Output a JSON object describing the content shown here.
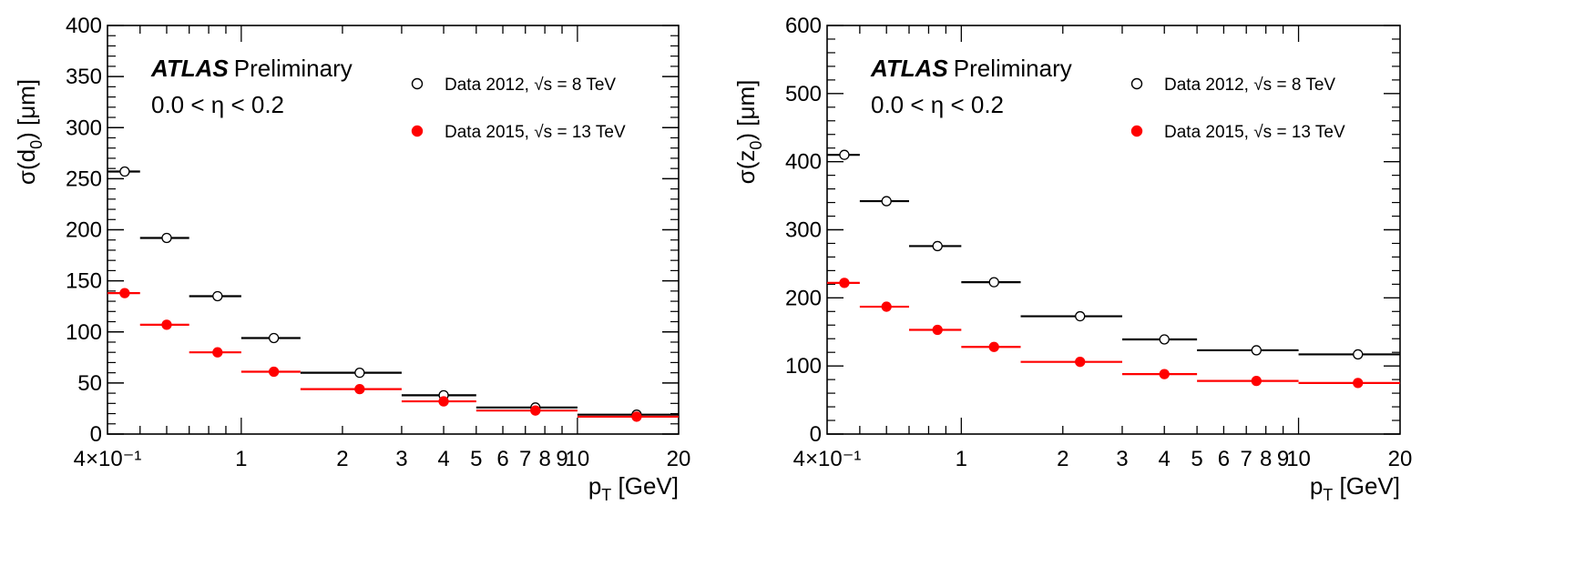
{
  "chart_data": [
    {
      "type": "scatter",
      "xscale": "log",
      "xlim": [
        0.4,
        20
      ],
      "ylim": [
        0,
        400
      ],
      "yticks": [
        0,
        50,
        100,
        150,
        200,
        250,
        300,
        350,
        400
      ],
      "xtick_labels": [
        {
          "x": 0.4,
          "label": "4×10⁻¹"
        },
        {
          "x": 1,
          "label": "1"
        },
        {
          "x": 2,
          "label": "2"
        },
        {
          "x": 3,
          "label": "3"
        },
        {
          "x": 4,
          "label": "4"
        },
        {
          "x": 5,
          "label": "5"
        },
        {
          "x": 6,
          "label": "6"
        },
        {
          "x": 7,
          "label": "7"
        },
        {
          "x": 8,
          "label": "8"
        },
        {
          "x": 9,
          "label": "9"
        },
        {
          "x": 10,
          "label": "10"
        },
        {
          "x": 20,
          "label": "20"
        }
      ],
      "xlabel": "p_T [GeV]",
      "ylabel": "σ(d_0) [μm]",
      "ylabel_main": "σ(d",
      "ylabel_sub": "0",
      "ylabel_tail": ") [μm]",
      "atlas_label": "ATLAS",
      "atlas_sub": "Preliminary",
      "region_label": "0.0 < η < 0.2",
      "legend_position": "top-right",
      "series": [
        {
          "name": "Data 2012, √s = 8 TeV",
          "marker": "open-circle",
          "color": "#000000",
          "points": [
            {
              "xlo": 0.4,
              "xhi": 0.5,
              "x": 0.45,
              "y": 257
            },
            {
              "xlo": 0.5,
              "xhi": 0.7,
              "x": 0.6,
              "y": 192
            },
            {
              "xlo": 0.7,
              "xhi": 1.0,
              "x": 0.85,
              "y": 135
            },
            {
              "xlo": 1.0,
              "xhi": 1.5,
              "x": 1.25,
              "y": 94
            },
            {
              "xlo": 1.5,
              "xhi": 3.0,
              "x": 2.25,
              "y": 60
            },
            {
              "xlo": 3.0,
              "xhi": 5.0,
              "x": 4.0,
              "y": 38
            },
            {
              "xlo": 5.0,
              "xhi": 10.0,
              "x": 7.5,
              "y": 26
            },
            {
              "xlo": 10.0,
              "xhi": 20.0,
              "x": 15.0,
              "y": 19
            }
          ]
        },
        {
          "name": "Data 2015, √s = 13 TeV",
          "marker": "filled-circle",
          "color": "#ff0000",
          "points": [
            {
              "xlo": 0.4,
              "xhi": 0.5,
              "x": 0.45,
              "y": 138
            },
            {
              "xlo": 0.5,
              "xhi": 0.7,
              "x": 0.6,
              "y": 107
            },
            {
              "xlo": 0.7,
              "xhi": 1.0,
              "x": 0.85,
              "y": 80
            },
            {
              "xlo": 1.0,
              "xhi": 1.5,
              "x": 1.25,
              "y": 61
            },
            {
              "xlo": 1.5,
              "xhi": 3.0,
              "x": 2.25,
              "y": 44
            },
            {
              "xlo": 3.0,
              "xhi": 5.0,
              "x": 4.0,
              "y": 32
            },
            {
              "xlo": 5.0,
              "xhi": 10.0,
              "x": 7.5,
              "y": 23
            },
            {
              "xlo": 10.0,
              "xhi": 20.0,
              "x": 15.0,
              "y": 17
            }
          ]
        }
      ]
    },
    {
      "type": "scatter",
      "xscale": "log",
      "xlim": [
        0.4,
        20
      ],
      "ylim": [
        0,
        600
      ],
      "yticks": [
        0,
        100,
        200,
        300,
        400,
        500,
        600
      ],
      "xtick_labels": [
        {
          "x": 0.4,
          "label": "4×10⁻¹"
        },
        {
          "x": 1,
          "label": "1"
        },
        {
          "x": 2,
          "label": "2"
        },
        {
          "x": 3,
          "label": "3"
        },
        {
          "x": 4,
          "label": "4"
        },
        {
          "x": 5,
          "label": "5"
        },
        {
          "x": 6,
          "label": "6"
        },
        {
          "x": 7,
          "label": "7"
        },
        {
          "x": 8,
          "label": "8"
        },
        {
          "x": 9,
          "label": "9"
        },
        {
          "x": 10,
          "label": "10"
        },
        {
          "x": 20,
          "label": "20"
        }
      ],
      "xlabel": "p_T [GeV]",
      "ylabel": "σ(z_0) [μm]",
      "ylabel_main": "σ(z",
      "ylabel_sub": "0",
      "ylabel_tail": ") [μm]",
      "atlas_label": "ATLAS",
      "atlas_sub": "Preliminary",
      "region_label": "0.0 < η < 0.2",
      "legend_position": "top-right",
      "series": [
        {
          "name": "Data 2012, √s = 8 TeV",
          "marker": "open-circle",
          "color": "#000000",
          "points": [
            {
              "xlo": 0.4,
              "xhi": 0.5,
              "x": 0.45,
              "y": 410
            },
            {
              "xlo": 0.5,
              "xhi": 0.7,
              "x": 0.6,
              "y": 342
            },
            {
              "xlo": 0.7,
              "xhi": 1.0,
              "x": 0.85,
              "y": 276
            },
            {
              "xlo": 1.0,
              "xhi": 1.5,
              "x": 1.25,
              "y": 223
            },
            {
              "xlo": 1.5,
              "xhi": 3.0,
              "x": 2.25,
              "y": 173
            },
            {
              "xlo": 3.0,
              "xhi": 5.0,
              "x": 4.0,
              "y": 139
            },
            {
              "xlo": 5.0,
              "xhi": 10.0,
              "x": 7.5,
              "y": 123
            },
            {
              "xlo": 10.0,
              "xhi": 20.0,
              "x": 15.0,
              "y": 117
            }
          ]
        },
        {
          "name": "Data 2015, √s = 13 TeV",
          "marker": "filled-circle",
          "color": "#ff0000",
          "points": [
            {
              "xlo": 0.4,
              "xhi": 0.5,
              "x": 0.45,
              "y": 222
            },
            {
              "xlo": 0.5,
              "xhi": 0.7,
              "x": 0.6,
              "y": 187
            },
            {
              "xlo": 0.7,
              "xhi": 1.0,
              "x": 0.85,
              "y": 153
            },
            {
              "xlo": 1.0,
              "xhi": 1.5,
              "x": 1.25,
              "y": 128
            },
            {
              "xlo": 1.5,
              "xhi": 3.0,
              "x": 2.25,
              "y": 106
            },
            {
              "xlo": 3.0,
              "xhi": 5.0,
              "x": 4.0,
              "y": 88
            },
            {
              "xlo": 5.0,
              "xhi": 10.0,
              "x": 7.5,
              "y": 78
            },
            {
              "xlo": 10.0,
              "xhi": 20.0,
              "x": 15.0,
              "y": 75
            }
          ]
        }
      ]
    }
  ]
}
